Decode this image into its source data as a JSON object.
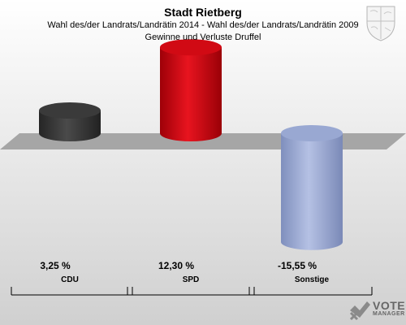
{
  "header": {
    "title": "Stadt Rietberg",
    "subtitle": "Wahl des/der Landrats/Landrätin 2014 - Wahl des/der Landrats/Landrätin 2009",
    "subtitle2": "Gewinne und Verluste Druffel"
  },
  "chart_data": {
    "type": "bar",
    "title": "Stadt Rietberg",
    "categories": [
      "CDU",
      "SPD",
      "Sonstige"
    ],
    "values": [
      3.25,
      12.3,
      -15.55
    ],
    "value_labels": [
      "3,25 %",
      "12,30 %",
      "-15,55 %"
    ],
    "colors": [
      "#3a3a3a",
      "#d10a14",
      "#99a8d2"
    ],
    "baseline": 0
  },
  "logo": {
    "line1": "VOTE",
    "line2": "MANAGER"
  }
}
